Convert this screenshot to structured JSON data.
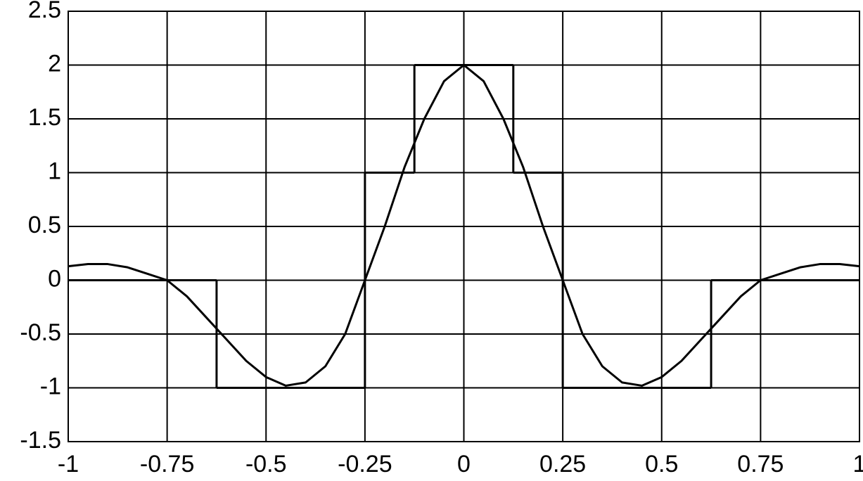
{
  "chart_data": {
    "type": "line",
    "xlim": [
      -1,
      1
    ],
    "ylim": [
      -1.5,
      2.5
    ],
    "xticks": [
      -1,
      -0.75,
      -0.5,
      -0.25,
      0,
      0.25,
      0.5,
      0.75,
      1
    ],
    "yticks": [
      2.5,
      2,
      1.5,
      1,
      0.5,
      0,
      -0.5,
      -1,
      -1.5
    ],
    "grid": true,
    "series": [
      {
        "color": "#000000",
        "drawstyle": "smooth",
        "x": [
          -1,
          -0.95,
          -0.9,
          -0.85,
          -0.8,
          -0.75,
          -0.7,
          -0.65,
          -0.6,
          -0.55,
          -0.5,
          -0.45,
          -0.4,
          -0.35,
          -0.3,
          -0.25,
          -0.2,
          -0.15,
          -0.1,
          -0.05,
          0,
          0.05,
          0.1,
          0.15,
          0.2,
          0.25,
          0.3,
          0.35,
          0.4,
          0.45,
          0.5,
          0.55,
          0.6,
          0.65,
          0.7,
          0.75,
          0.8,
          0.85,
          0.9,
          0.95,
          1
        ],
        "values": [
          0.13,
          0.15,
          0.15,
          0.12,
          0.06,
          0,
          -0.15,
          -0.35,
          -0.55,
          -0.75,
          -0.9,
          -0.98,
          -0.95,
          -0.8,
          -0.5,
          0,
          0.5,
          1.05,
          1.5,
          1.85,
          2,
          1.85,
          1.5,
          1.05,
          0.5,
          0,
          -0.5,
          -0.8,
          -0.95,
          -0.98,
          -0.9,
          -0.75,
          -0.55,
          -0.35,
          -0.15,
          0,
          0.06,
          0.12,
          0.15,
          0.15,
          0.13
        ]
      },
      {
        "color": "#000000",
        "drawstyle": "steps-post",
        "x": [
          -1,
          -0.625,
          -0.25,
          -0.125,
          0.125,
          0.25,
          0.625,
          1
        ],
        "values": [
          0,
          -1,
          1,
          2,
          1,
          -1,
          0,
          0
        ]
      }
    ]
  }
}
